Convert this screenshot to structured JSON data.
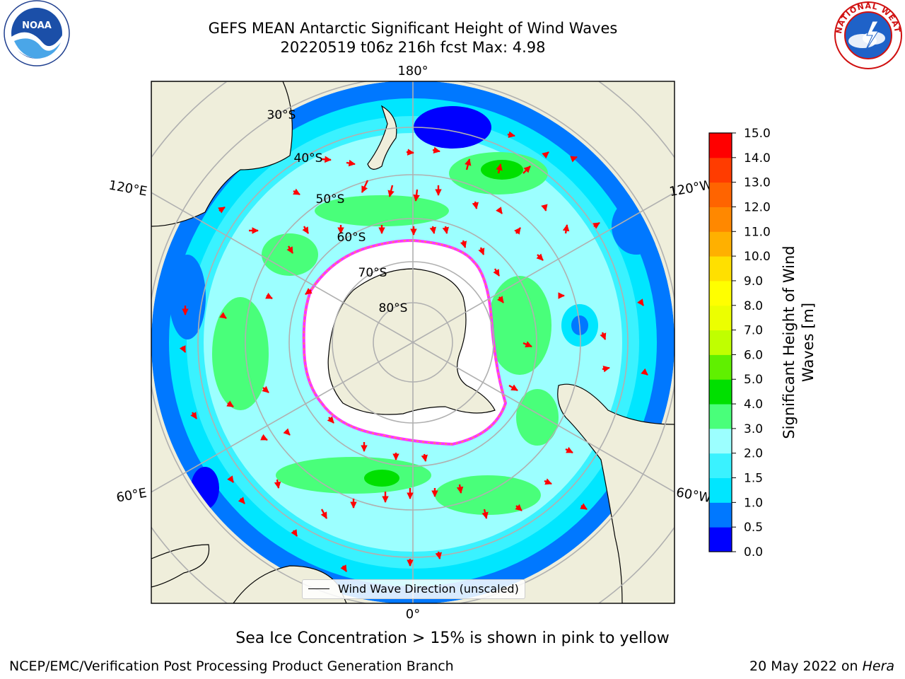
{
  "title": {
    "line1": "GEFS MEAN Antarctic Significant Height of Wind Waves",
    "line2": "20220519 t06z 216h fcst   Max: 4.98"
  },
  "logos": {
    "left": "NOAA",
    "right": "NATIONAL WEATHER SERVICE",
    "left_ring_text": "NATIONAL OCEANIC AND ATMOSPHERIC ADMINISTRATION · U.S. DEPARTMENT OF COMMERCE"
  },
  "map": {
    "projection": "south-polar-stereographic",
    "meridian_labels": [
      "180°",
      "120°E",
      "120°W",
      "60°E",
      "60°W",
      "0°"
    ],
    "parallel_labels": [
      "30°S",
      "40°S",
      "50°S",
      "60°S",
      "70°S",
      "80°S"
    ],
    "legend_label": "Wind Wave Direction (unscaled)",
    "colors": {
      "land": "#efeedb",
      "ice": "#ffffff",
      "ice_edge": [
        "#ff33ff",
        "#ffc000"
      ],
      "vectors": "#ff0000",
      "grid": "#b0b0b0"
    }
  },
  "colorbar": {
    "label": "Significant Height of Wind Waves [m]",
    "label_line1": "Significant Height of Wind",
    "label_line2": "Waves [m]",
    "ticks": [
      "0.0",
      "0.5",
      "1.0",
      "1.5",
      "2.0",
      "3.0",
      "4.0",
      "5.0",
      "6.0",
      "7.0",
      "8.0",
      "9.0",
      "10.0",
      "11.0",
      "12.0",
      "13.0",
      "14.0",
      "15.0"
    ],
    "colors": [
      "#0000ff",
      "#0078ff",
      "#00e6ff",
      "#3af2ff",
      "#9cffff",
      "#49ff7a",
      "#00e000",
      "#60f000",
      "#c0ff00",
      "#ecff00",
      "#ffff00",
      "#ffe000",
      "#ffb000",
      "#ff8800",
      "#ff6400",
      "#ff3c00",
      "#ff0000"
    ]
  },
  "sea_ice_note": "Sea Ice Concentration > 15% is shown in pink to yellow",
  "footer": {
    "left": "NCEP/EMC/Verification Post Processing Product Generation Branch",
    "right_date": "20 May 2022 on ",
    "right_machine": "Hera"
  }
}
